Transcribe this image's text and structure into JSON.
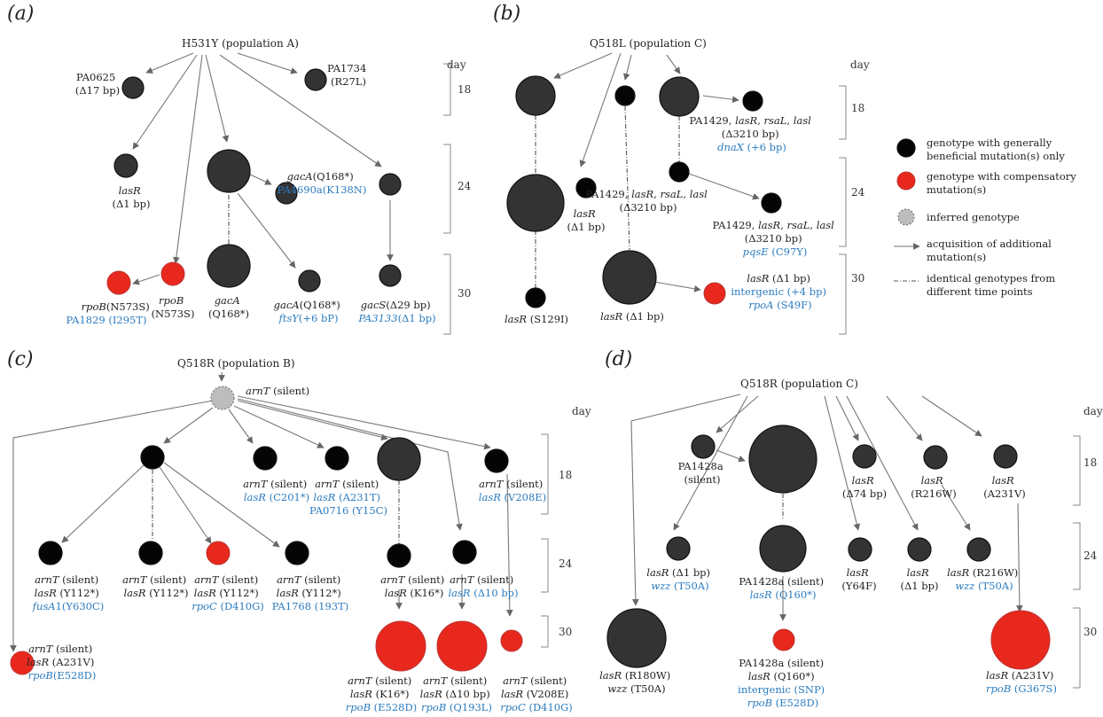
{
  "colors": {
    "dark_node": "#333333",
    "black_node": "#050505",
    "compensatory_node": "#e8281d",
    "inferred_node": "#bdbdbd",
    "blue_text": "#2b7bbf"
  },
  "legend": {
    "items": [
      {
        "kind": "black",
        "lines": [
          "genotype with generally",
          "beneficial mutation(s) only"
        ]
      },
      {
        "kind": "red",
        "lines": [
          "genotype with compensatory",
          "mutation(s)"
        ]
      },
      {
        "kind": "inferred",
        "lines": [
          "inferred genotype"
        ]
      },
      {
        "kind": "arrow",
        "lines": [
          "acquisition of additional",
          "mutation(s)"
        ]
      },
      {
        "kind": "dash",
        "lines": [
          "identical genotypes from",
          "different time points"
        ]
      }
    ]
  },
  "panels": {
    "a": {
      "label": "(a)",
      "root": "H531Y (population A)",
      "day_title": "day",
      "days": [
        "18",
        "24",
        "30"
      ],
      "nodes": {
        "pa0625": [
          "PA0625",
          "(Δ17 bp)"
        ],
        "pa1734": [
          "PA1734",
          "(R27L)"
        ],
        "lasr": [
          "lasR",
          "(Δ1 bp)"
        ],
        "gaca24": [
          "gacA",
          "(Q168*)",
          "PA4690a",
          "(K138N)"
        ],
        "rpob1": [
          "rpoB",
          "(N573S)",
          "PA1829 (I295T)"
        ],
        "rpob2": [
          "rpoB",
          "(N573S)"
        ],
        "gaca30": [
          "gacA",
          "(Q168*)"
        ],
        "gaca30b": [
          "gacA",
          "(Q168*)",
          "ftsY",
          "(+6 bP)"
        ],
        "gacs": [
          "gacS",
          "(Δ29 bp)",
          "PA3133",
          "(Δ1 bp)"
        ]
      }
    },
    "b": {
      "label": "(b)",
      "root": "Q518L (population C)",
      "day_title": "day",
      "days": [
        "18",
        "24",
        "30"
      ],
      "nodes": {
        "pa1429a": [
          "PA1429, ",
          "lasR",
          ", ",
          "rsaL",
          ", ",
          "lasl",
          "(Δ3210 bp)",
          "dnaX",
          " (+6 bp)"
        ],
        "lasr24": [
          "lasR",
          "(Δ1 bp)"
        ],
        "pa1429b": [
          "PA1429, ",
          "lasR",
          ", ",
          "rsaL",
          ", ",
          "lasl",
          "(Δ3210 bp)"
        ],
        "pa1429c": [
          "PA1429, ",
          "lasR",
          ", ",
          "rsaL",
          ", ",
          "lasl",
          "(Δ3210 bp)",
          "pqsE",
          " (C97Y)"
        ],
        "lasr30s": [
          "lasR",
          " (S129I)"
        ],
        "lasr30": [
          "lasR",
          " (Δ1 bp)"
        ],
        "lasr30r": [
          "lasR",
          " (Δ1 bp)",
          "intergenic (+4 bp)",
          "rpoA",
          " (S49F)"
        ]
      }
    },
    "c": {
      "label": "(c)",
      "root": "Q518R (population B)",
      "root2": "arnT",
      "root2b": " (silent)",
      "day_title": "day",
      "days": [
        "18",
        "24",
        "30"
      ],
      "silent": " (silent)",
      "nodes": {
        "c201": [
          "arnT",
          "lasR",
          " (C201*)"
        ],
        "a231t": [
          "arnT",
          "lasR",
          " (A231T)",
          "PA0716 (Y15C)"
        ],
        "v208e18": [
          "arnT",
          "lasR",
          " (V208E)"
        ],
        "fusa": [
          "arnT",
          "lasR",
          " (Y112*)",
          "fusA",
          "1(Y630C)"
        ],
        "y112": [
          "arnT",
          "lasR",
          " (Y112*)"
        ],
        "rpoc": [
          "arnT",
          "lasR",
          " (Y112*)",
          "rpoC",
          " (D410G)"
        ],
        "pa1768": [
          "arnT",
          "lasR",
          " (Y112*)",
          "PA1768 (193T)"
        ],
        "k16": [
          "arnT",
          "lasR",
          " (K16*)"
        ],
        "d10": [
          "arnT",
          "lasR",
          " (Δ10 bp)"
        ],
        "a231v": [
          "arnT",
          "lasR",
          " (A231V)",
          "rpoB",
          "(E528D)"
        ],
        "k16r": [
          "arnT",
          "lasR",
          " (K16*)",
          "rpoB",
          " (E528D)"
        ],
        "d10r": [
          "arnT",
          "lasR",
          " (Δ10 bp)",
          "rpoB",
          " (Q193L)"
        ],
        "v208er": [
          "arnT",
          "lasR",
          " (V208E)",
          "rpoC",
          " (D410G)"
        ]
      }
    },
    "d": {
      "label": "(d)",
      "root": "Q518R (population C)",
      "day_title": "day",
      "days": [
        "18",
        "24",
        "30"
      ],
      "nodes": {
        "pa1428": [
          "PA1428a",
          "(silent)"
        ],
        "d74": [
          "lasR",
          "(Δ74 bp)"
        ],
        "r216w": [
          "lasR",
          "(R216W)"
        ],
        "a231v": [
          "lasR",
          "(A231V)"
        ],
        "wzz24": [
          "lasR",
          " (Δ1 bp)",
          "wzz",
          " (T50A)"
        ],
        "q160": [
          "PA1428a (silent)",
          "lasR",
          " (Q160*)"
        ],
        "y64f": [
          "lasR",
          "(Y64F)"
        ],
        "d1": [
          "lasR",
          "(Δ1 bp)"
        ],
        "r216wwzz": [
          "lasR",
          " (R216W)",
          "wzz",
          " (T50A)"
        ],
        "r180w": [
          "lasR",
          " (R180W)",
          "wzz",
          " (T50A)"
        ],
        "q160r": [
          "PA1428a (silent)",
          "lasR",
          " (Q160*)",
          "intergenic (SNP)",
          "rpoB",
          " (E528D)"
        ],
        "a231vr": [
          "lasR",
          " (A231V)",
          "rpoB",
          " (G367S)"
        ]
      }
    }
  }
}
